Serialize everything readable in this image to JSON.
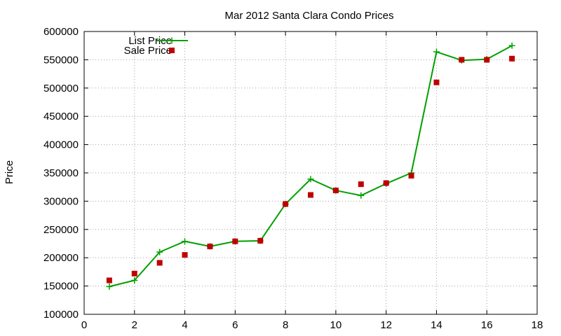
{
  "chart_data": {
    "type": "line",
    "title": "Mar 2012 Santa Clara Condo Prices",
    "xlabel": "",
    "ylabel": "Price",
    "xlim": [
      0,
      18
    ],
    "ylim": [
      100000,
      600000
    ],
    "xticks": [
      0,
      2,
      4,
      6,
      8,
      10,
      12,
      14,
      16,
      18
    ],
    "yticks": [
      100000,
      150000,
      200000,
      250000,
      300000,
      350000,
      400000,
      450000,
      500000,
      550000,
      600000
    ],
    "grid": true,
    "legend_position": "top-left",
    "series": [
      {
        "name": "List Price",
        "style": "line-plus",
        "color": "#00a000",
        "x": [
          1,
          2,
          3,
          4,
          5,
          6,
          7,
          8,
          9,
          10,
          11,
          12,
          13,
          14,
          15,
          16,
          17
        ],
        "values": [
          149000,
          160000,
          210000,
          229000,
          220000,
          229000,
          230000,
          295000,
          339000,
          319000,
          310000,
          331000,
          350000,
          564000,
          549000,
          551000,
          575000
        ]
      },
      {
        "name": "Sale Price",
        "style": "square-points",
        "color": "#c00000",
        "x": [
          1,
          2,
          3,
          4,
          5,
          6,
          7,
          8,
          9,
          10,
          11,
          12,
          13,
          14,
          15,
          16,
          17
        ],
        "values": [
          160000,
          172000,
          191000,
          205000,
          220000,
          229000,
          230000,
          295000,
          311000,
          319000,
          330000,
          332000,
          345000,
          510000,
          550000,
          550000,
          552000
        ]
      }
    ]
  }
}
